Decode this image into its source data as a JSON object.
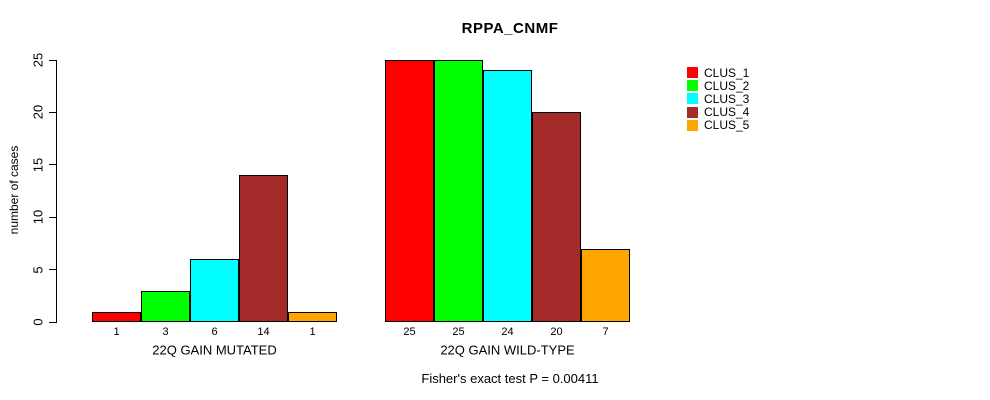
{
  "chart_data": {
    "type": "bar",
    "title": "RPPA_CNMF",
    "ylabel": "number of cases",
    "xlabel": "",
    "ylim": [
      0,
      25
    ],
    "yticks": [
      0,
      5,
      10,
      15,
      20,
      25
    ],
    "grid": false,
    "legend_position": "right-outside",
    "categories": [
      "22Q GAIN MUTATED",
      "22Q GAIN WILD-TYPE"
    ],
    "series": [
      {
        "name": "CLUS_1",
        "color": "#FF0000",
        "values": [
          1,
          25
        ]
      },
      {
        "name": "CLUS_2",
        "color": "#00FF00",
        "values": [
          3,
          25
        ]
      },
      {
        "name": "CLUS_3",
        "color": "#00FFFF",
        "values": [
          6,
          24
        ]
      },
      {
        "name": "CLUS_4",
        "color": "#A52A2A",
        "values": [
          14,
          20
        ]
      },
      {
        "name": "CLUS_5",
        "color": "#FFA500",
        "values": [
          1,
          7
        ]
      }
    ],
    "bar_value_labels": [
      [
        "1",
        "3",
        "6",
        "14",
        "1"
      ],
      [
        "25",
        "25",
        "24",
        "20",
        "7"
      ]
    ],
    "annotation": "Fisher's exact test P = 0.00411"
  },
  "legend": {
    "items": [
      {
        "label": "CLUS_1",
        "color": "#FF0000"
      },
      {
        "label": "CLUS_2",
        "color": "#00FF00"
      },
      {
        "label": "CLUS_3",
        "color": "#00FFFF"
      },
      {
        "label": "CLUS_4",
        "color": "#A52A2A"
      },
      {
        "label": "CLUS_5",
        "color": "#FFA500"
      }
    ]
  },
  "colors": {
    "axis": "#000000",
    "text": "#000000",
    "background": "#FFFFFF",
    "bar_border": "#000000"
  }
}
